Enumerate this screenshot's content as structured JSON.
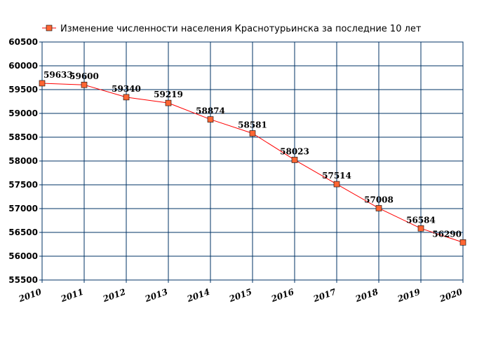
{
  "chart_data": {
    "type": "line",
    "title": "Изменение численности населения Краснотурьинска за последние 10 лет",
    "x": [
      2010,
      2011,
      2012,
      2013,
      2014,
      2015,
      2016,
      2017,
      2018,
      2019,
      2020
    ],
    "series": [
      {
        "name": "Изменение численности населения Краснотурьинска за последние 10 лет",
        "values": [
          59633,
          59600,
          59340,
          59219,
          58874,
          58581,
          58023,
          57514,
          57008,
          56584,
          56290
        ]
      }
    ],
    "ylim": [
      55500,
      60500
    ],
    "yticks": [
      55500,
      56000,
      56500,
      57000,
      57500,
      58000,
      58500,
      59000,
      59500,
      60000,
      60500
    ],
    "xlim": [
      2010,
      2020
    ],
    "grid": true,
    "legend": "top",
    "colors": {
      "line": "#ff0000",
      "marker": "#ff6633",
      "grid": "#003366"
    }
  }
}
